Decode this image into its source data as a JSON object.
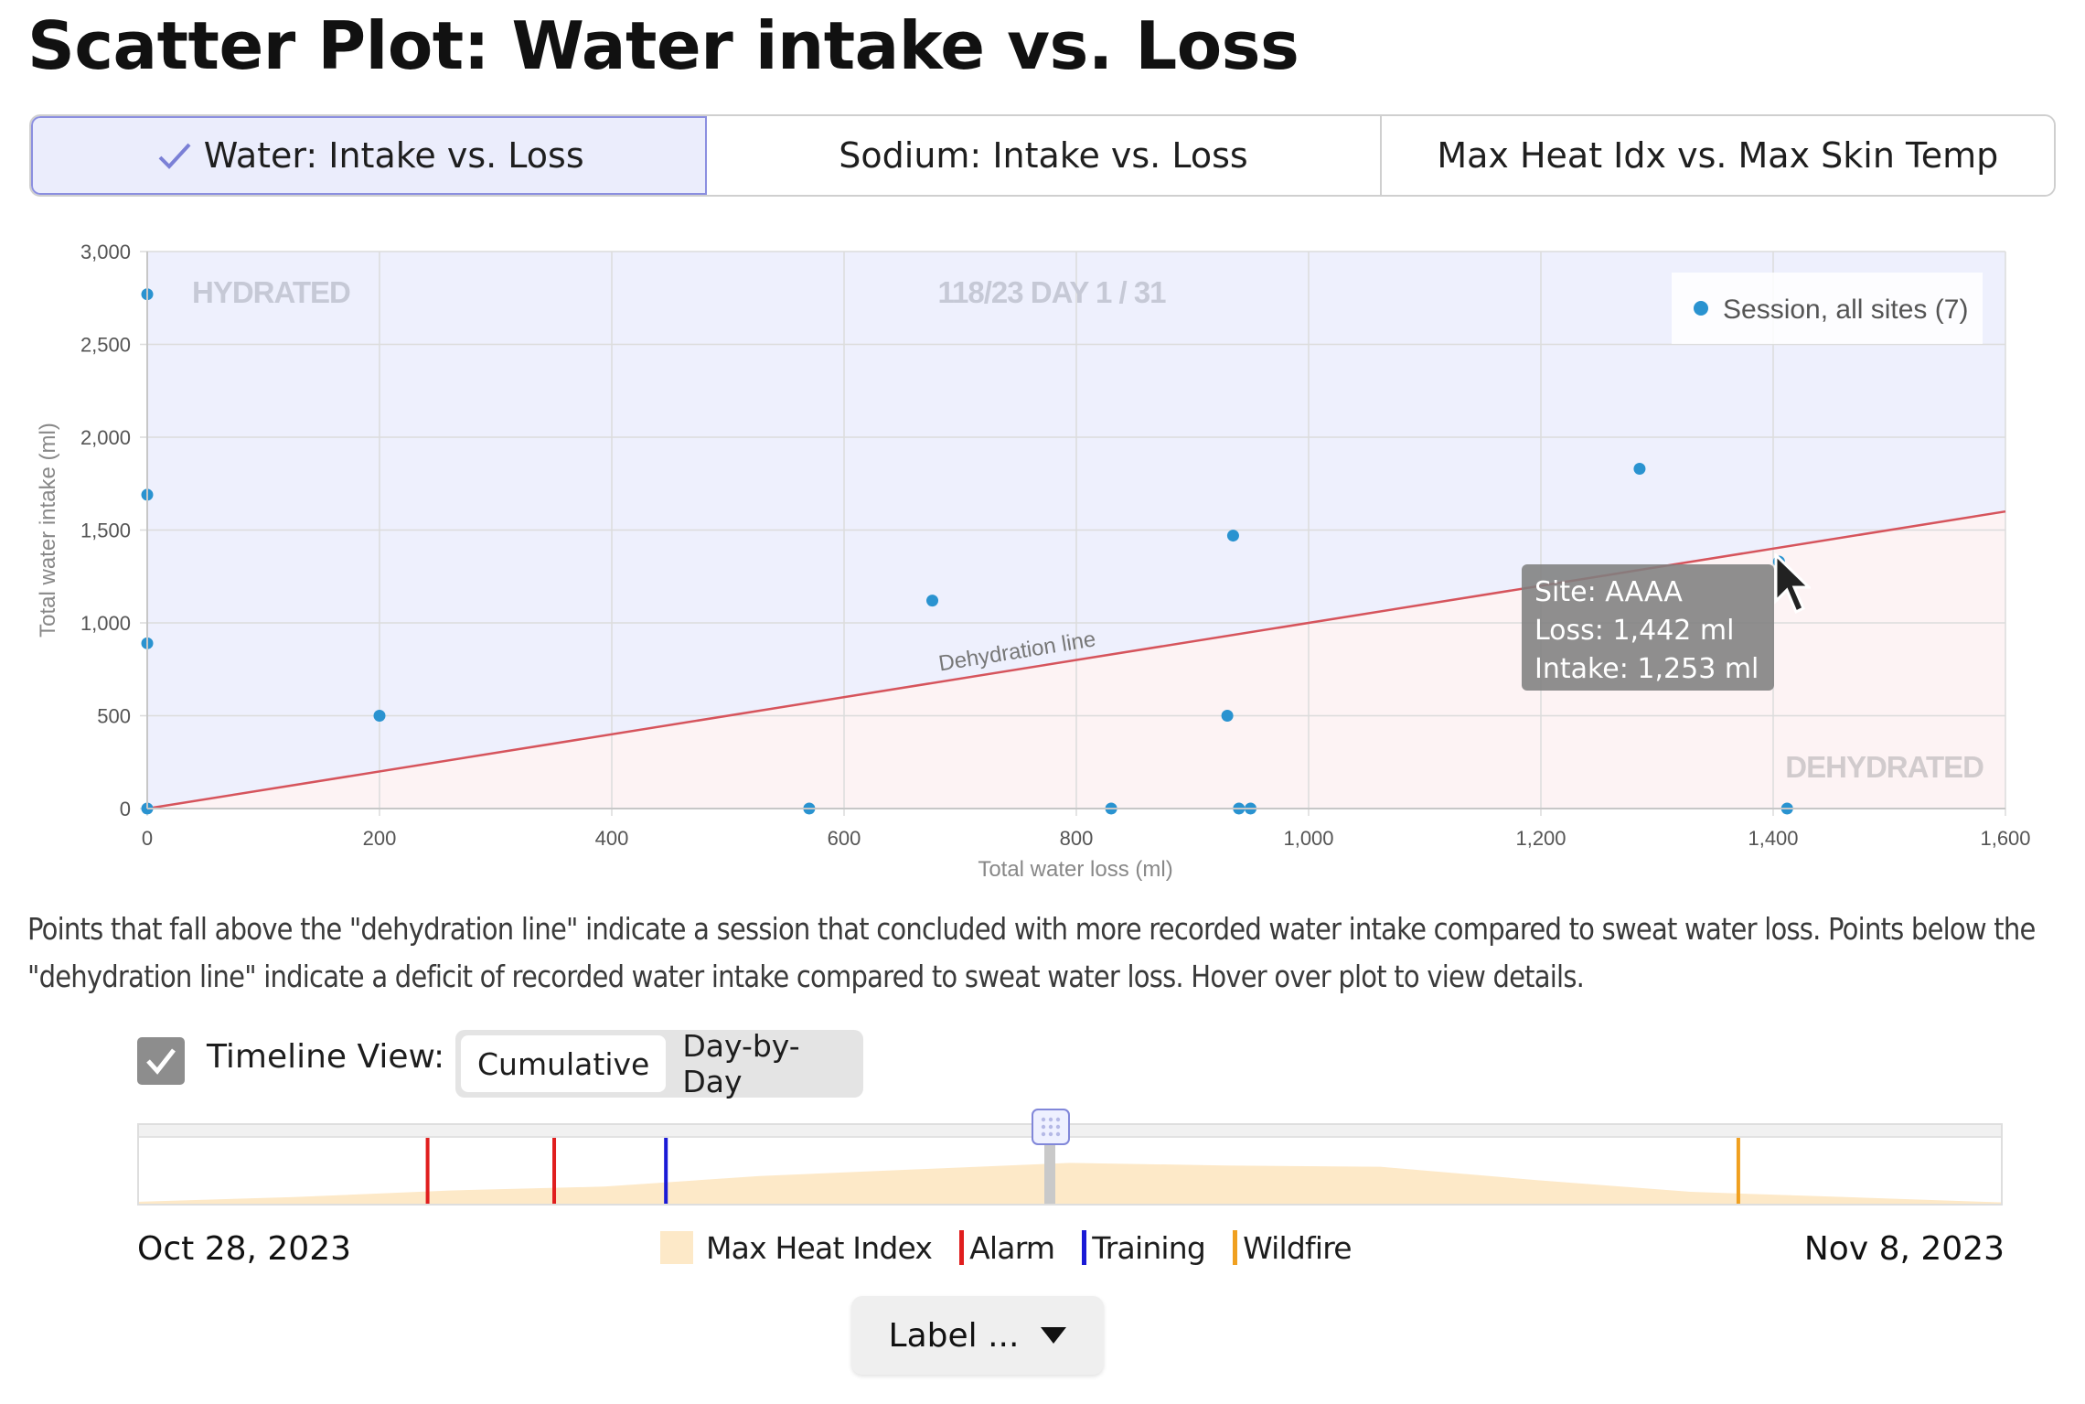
{
  "page": {
    "title": "Scatter Plot: Water intake vs. Loss"
  },
  "tabs": [
    {
      "label": "Water: Intake vs. Loss",
      "selected": true,
      "icon": "checkmark-icon"
    },
    {
      "label": "Sodium: Intake vs. Loss",
      "selected": false
    },
    {
      "label": "Max Heat Idx vs. Max Skin Temp",
      "selected": false
    }
  ],
  "chart_data": {
    "type": "scatter",
    "xlabel": "Total water loss (ml)",
    "ylabel": "Total water intake (ml)",
    "xlim": [
      0,
      1600
    ],
    "ylim": [
      0,
      3000
    ],
    "x_ticks": [
      "0",
      "200",
      "400",
      "600",
      "800",
      "1,000",
      "1,200",
      "1,400",
      "1,600"
    ],
    "y_ticks": [
      "0",
      "500",
      "1,000",
      "1,500",
      "2,000",
      "2,500",
      "3,000"
    ],
    "grid": true,
    "legend_position": "top-right",
    "region_labels": {
      "above": "HYDRATED",
      "below": "DEHYDRATED"
    },
    "subtitle": "118/23 DAY 1 / 31",
    "reference_line": {
      "label": "Dehydration line",
      "from": [
        0,
        0
      ],
      "to": [
        1600,
        1600
      ]
    },
    "series": [
      {
        "name": "Session, all sites (7)",
        "color": "#2a93d0",
        "points": [
          [
            0,
            2770
          ],
          [
            0,
            1690
          ],
          [
            0,
            890
          ],
          [
            0,
            0
          ],
          [
            200,
            500
          ],
          [
            570,
            0
          ],
          [
            676,
            1120
          ],
          [
            830,
            0
          ],
          [
            930,
            500
          ],
          [
            935,
            1470
          ],
          [
            940,
            0
          ],
          [
            950,
            0
          ],
          [
            1285,
            1830
          ],
          [
            1405,
            1330
          ],
          [
            1412,
            0
          ]
        ]
      }
    ],
    "colors": {
      "hydrated_fill": "#eef0fd",
      "dehydrated_fill": "#fdf3f4",
      "line": "#d6545c"
    }
  },
  "tooltip": {
    "site": "Site: AAAA",
    "loss": "Loss: 1,442 ml",
    "intake": "Intake: 1,253 ml"
  },
  "description": "Points that fall above the \"dehydration line\" indicate a session that concluded with more recorded water intake compared to sweat water loss. Points below the \"dehydration line\" indicate a deficit of recorded water intake compared to sweat water loss. Hover over plot to view details.",
  "timeline": {
    "checkbox_checked": true,
    "label": "Timeline View:",
    "modes": [
      "Cumulative",
      "Day-by-Day"
    ],
    "selected_mode": "Cumulative",
    "start_date": "Oct 28, 2023",
    "end_date": "Nov 8, 2023",
    "slider_position": 0.487,
    "heat_index_profile": [
      0.03,
      0.1,
      0.2,
      0.26,
      0.42,
      0.52,
      0.62,
      0.58,
      0.56,
      0.36,
      0.18,
      0.1,
      0.02
    ],
    "events": [
      {
        "type": "Alarm",
        "position": 0.155,
        "color": "#e01e1e"
      },
      {
        "type": "Alarm",
        "position": 0.223,
        "color": "#e01e1e"
      },
      {
        "type": "Training",
        "position": 0.283,
        "color": "#1a1ad6"
      },
      {
        "type": "Wildfire",
        "position": 0.859,
        "color": "#f0a020"
      }
    ],
    "legend": {
      "heat": "Max Heat Index",
      "alarm": "Alarm",
      "training": "Training",
      "wildfire": "Wildfire"
    },
    "legend_colors": {
      "heat": "#fde9c8",
      "alarm": "#e01e1e",
      "training": "#1a1ad6",
      "wildfire": "#f0a020"
    }
  },
  "label_dropdown": {
    "label": "Label ..."
  }
}
